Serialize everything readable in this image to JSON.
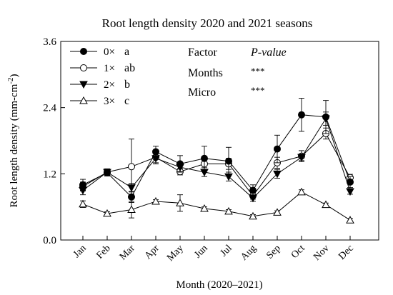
{
  "chart_data": {
    "type": "line",
    "title": "Root length density 2020 and 2021 seasons",
    "xlabel": "Month (2020–2021)",
    "ylabel": "Root length density (mm-cm",
    "ylabel_sup": "-2",
    "ylabel_tail": ")",
    "ylim": [
      0,
      3.6
    ],
    "yticks": [
      0.0,
      1.2,
      2.4,
      3.6
    ],
    "ytick_labels": [
      "0.0",
      "1.2",
      "2.4",
      "3.6"
    ],
    "categories": [
      "Jan",
      "Feb",
      "Mar",
      "Apr",
      "May",
      "Jun",
      "Jul",
      "Aug",
      "Sep",
      "Oct",
      "Nov",
      "Dec"
    ],
    "grid": false,
    "legend_position": "top-left",
    "series": [
      {
        "name": "0×",
        "letter": "a",
        "marker": "filled-circle",
        "values": [
          1.0,
          1.22,
          0.78,
          1.6,
          1.38,
          1.48,
          1.43,
          0.9,
          1.65,
          2.27,
          2.23,
          1.05
        ],
        "errors": [
          0.1,
          0.06,
          0.1,
          0.1,
          0.15,
          0.22,
          0.25,
          0.1,
          0.25,
          0.3,
          0.3,
          0.1
        ]
      },
      {
        "name": "1×",
        "letter": "ab",
        "marker": "open-circle",
        "values": [
          0.97,
          1.23,
          1.33,
          1.5,
          1.24,
          1.38,
          1.38,
          0.8,
          1.4,
          1.52,
          1.93,
          1.13
        ],
        "errors": [
          0.08,
          0.06,
          0.5,
          0.1,
          0.06,
          0.1,
          0.1,
          0.06,
          0.1,
          0.1,
          0.1,
          0.06
        ]
      },
      {
        "name": "2×",
        "letter": "b",
        "marker": "filled-triangle-down",
        "values": [
          0.9,
          1.23,
          0.95,
          1.48,
          1.32,
          1.23,
          1.15,
          0.76,
          1.2,
          1.5,
          2.2,
          0.88
        ],
        "errors": [
          0.08,
          0.06,
          0.08,
          0.1,
          0.08,
          0.08,
          0.08,
          0.06,
          0.08,
          0.06,
          0.12,
          0.05
        ]
      },
      {
        "name": "3×",
        "letter": "c",
        "marker": "open-triangle-up",
        "values": [
          0.65,
          0.48,
          0.55,
          0.7,
          0.67,
          0.57,
          0.52,
          0.43,
          0.5,
          0.87,
          0.64,
          0.36
        ],
        "errors": [
          0.06,
          0.03,
          0.15,
          0.03,
          0.15,
          0.03,
          0.03,
          0.03,
          0.03,
          0.04,
          0.03,
          0.03
        ]
      }
    ],
    "stats": {
      "header_factor": "Factor",
      "header_pvalue": "P-value",
      "rows": [
        {
          "factor": "Months",
          "pvalue": "***"
        },
        {
          "factor": "Micro",
          "pvalue": "***"
        }
      ]
    }
  }
}
